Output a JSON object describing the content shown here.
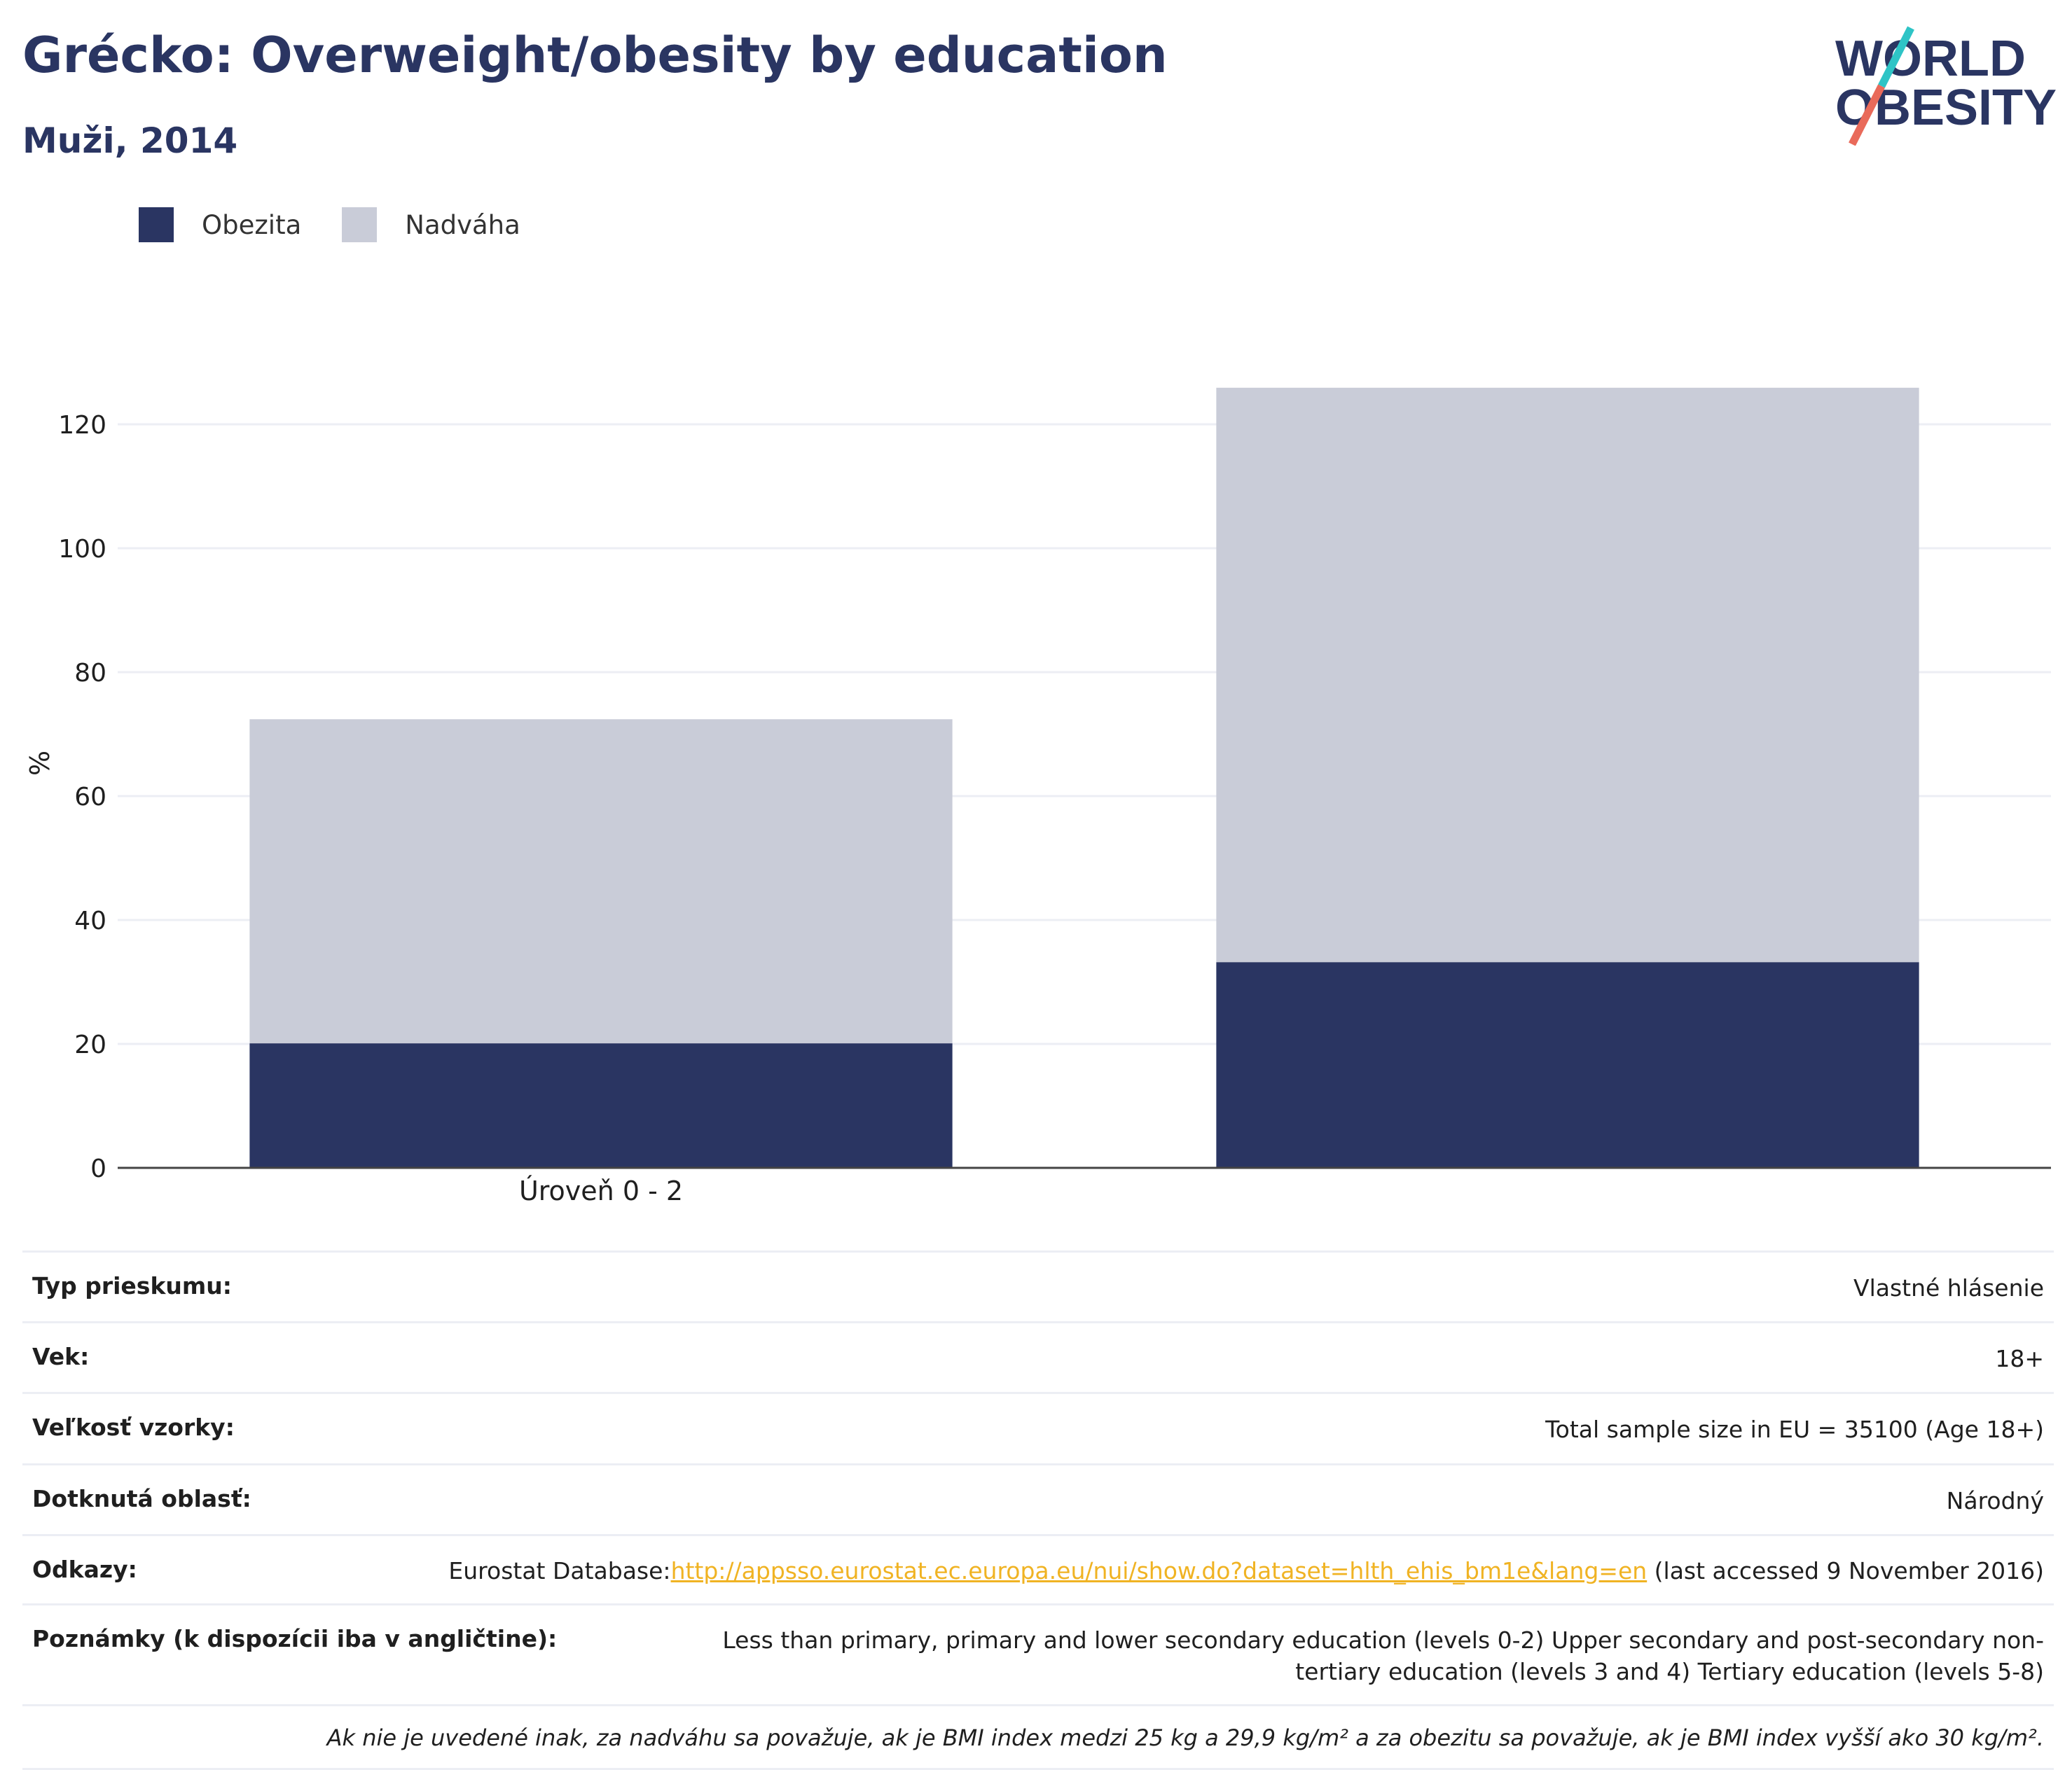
{
  "header": {
    "title": "Grécko: Overweight/obesity by education",
    "subtitle": "Muži, 2014"
  },
  "logo": {
    "line1": "WORLD",
    "line2": "OBESITY",
    "colors": {
      "text": "#2a3562",
      "slash_top": "#2ec4c6",
      "slash_bottom": "#e96a5a"
    }
  },
  "colors": {
    "obesity": "#2a3562",
    "overweight": "#c9ccd8",
    "grid": "#eceef4",
    "axis": "#444444"
  },
  "chart_data": {
    "type": "bar",
    "stacked": true,
    "categories": [
      "Úroveň 0 - 2",
      ""
    ],
    "series": [
      {
        "name": "Obezita",
        "values": [
          20.1,
          33.2
        ]
      },
      {
        "name": "Nadváha",
        "values": [
          52.3,
          92.7
        ]
      }
    ],
    "ylabel": "%",
    "xlabel": "",
    "ylim": [
      0,
      130
    ],
    "yticks": [
      0,
      20,
      40,
      60,
      80,
      100,
      120
    ],
    "grid": true,
    "legend_position": "top-left"
  },
  "info": {
    "rows": [
      {
        "label": "Typ prieskumu:",
        "value": "Vlastné hlásenie"
      },
      {
        "label": "Vek:",
        "value": "18+"
      },
      {
        "label": "Veľkosť vzorky:",
        "value": "Total sample size in EU = 35100 (Age 18+)"
      },
      {
        "label": "Dotknutá oblasť:",
        "value": "Národný"
      }
    ],
    "references": {
      "label": "Odkazy:",
      "prefix": "Eurostat Database:",
      "link": "http://appsso.eurostat.ec.europa.eu/nui/show.do?dataset=hlth_ehis_bm1e&lang=en",
      "suffix": " (last accessed 9 November 2016)"
    },
    "notes": {
      "label": "Poznámky (k dispozícii iba v angličtine):",
      "value": "Less than primary, primary and lower secondary education (levels 0-2) Upper secondary and post-secondary non-tertiary education (levels 3 and 4) Tertiary education (levels 5-8)"
    },
    "footnote": "Ak nie je uvedené inak, za nadváhu sa považuje, ak je BMI index medzi 25 kg a 29,9 kg/m² a za obezitu sa považuje, ak je BMI index vyšší ako 30 kg/m²."
  }
}
